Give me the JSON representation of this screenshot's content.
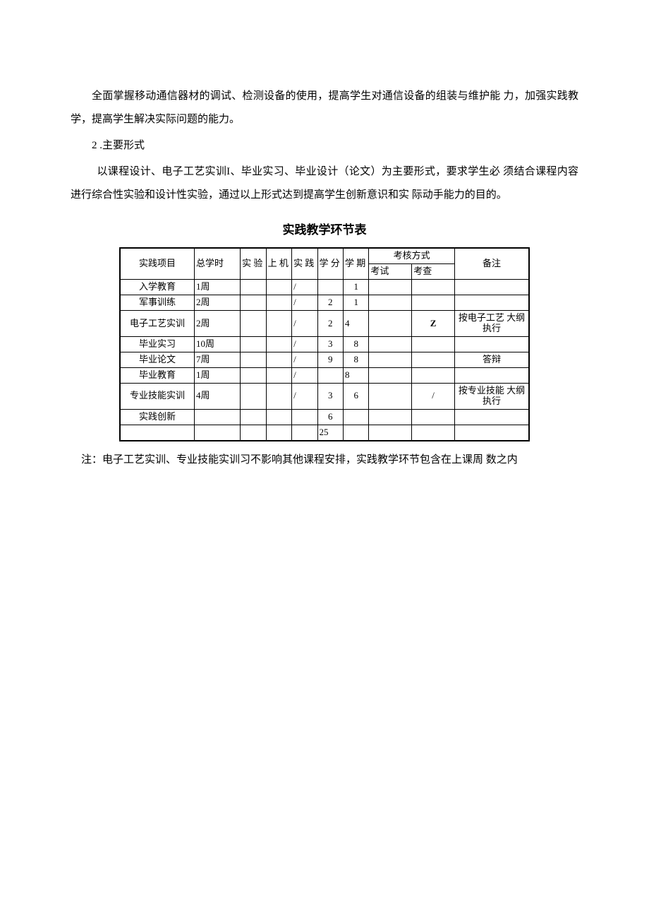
{
  "doc": {
    "colors": {
      "text": "#000000",
      "background": "#ffffff",
      "border": "#000000"
    },
    "fonts": {
      "body_family": "SimSun",
      "body_size_pt": 11,
      "title_size_pt": 13,
      "table_size_pt": 10
    },
    "para1": "全面掌握移动通信器材的调试、检测设备的使用，提高学生对通信设备的组装与维护能  力，加强实践教学，提高学生解决实际问题的能力。",
    "para2_num": "2 ",
    "para2_label": ".主要形式",
    "para3": "以课程设计、电子工艺实训I、毕业实习、毕业设计（论文）为主要形式，要求学生必  须结合课程内容进行综合性实验和设计性实验，通过以上形式达到提高学生创新意识和实  际动手能力的目的。",
    "table_title": "实践教学环节表",
    "note": "注：电子工艺实训、专业技能实训习不影响其他课程安排，实践教学环节包含在上课周  数之内"
  },
  "table": {
    "type": "table",
    "border_color": "#000000",
    "background_color": "#ffffff",
    "columns": {
      "project": "实践项目",
      "total_hours": "总学时",
      "experiment": "实 验",
      "computer": "上 机",
      "practice": "实 践",
      "credit": "学 分",
      "term": "学 期",
      "assessment": "考核方式",
      "exam": "考试",
      "check": "考查",
      "remark": "备注"
    },
    "rows": [
      {
        "project": "入学教育",
        "total": "1周",
        "exp": "",
        "comp": "",
        "prac": "/",
        "credit": "",
        "term": "1",
        "exam": "",
        "check": "",
        "remark": ""
      },
      {
        "project": "军事训练",
        "total": "2周",
        "exp": "",
        "comp": "",
        "prac": "/",
        "credit": "2",
        "term": "1",
        "exam": "",
        "check": "",
        "remark": ""
      },
      {
        "project": "电子工艺实训",
        "total": "2周",
        "exp": "",
        "comp": "",
        "prac": "/",
        "credit": "2",
        "term": "4",
        "exam": "",
        "check": "Z",
        "remark": "按电子工艺 大纲执行"
      },
      {
        "project": "毕业实习",
        "total": "10周",
        "exp": "",
        "comp": "",
        "prac": "/",
        "credit": "3",
        "term": "8",
        "exam": "",
        "check": "",
        "remark": ""
      },
      {
        "project": "毕业论文",
        "total": "7周",
        "exp": "",
        "comp": "",
        "prac": "/",
        "credit": "9",
        "term": "8",
        "exam": "",
        "check": "",
        "remark": "答辩"
      },
      {
        "project": "毕业教育",
        "total": "1周",
        "exp": "",
        "comp": "",
        "prac": "/",
        "credit": "",
        "term": "8",
        "exam": "",
        "check": "",
        "remark": ""
      },
      {
        "project": "专业技能实训",
        "total": "4周",
        "exp": "",
        "comp": "",
        "prac": "/",
        "credit": "3",
        "term": "6",
        "exam": "",
        "check": "/",
        "remark": "按专业技能 大纲执行"
      },
      {
        "project": "实践创新",
        "total": "",
        "exp": "",
        "comp": "",
        "prac": "",
        "credit": "6",
        "term": "",
        "exam": "",
        "check": "",
        "remark": ""
      }
    ],
    "footer": {
      "project": "",
      "total": "",
      "exp": "",
      "comp": "",
      "prac": "",
      "credit": "25",
      "term": "",
      "exam": "",
      "check": "",
      "remark": ""
    }
  }
}
